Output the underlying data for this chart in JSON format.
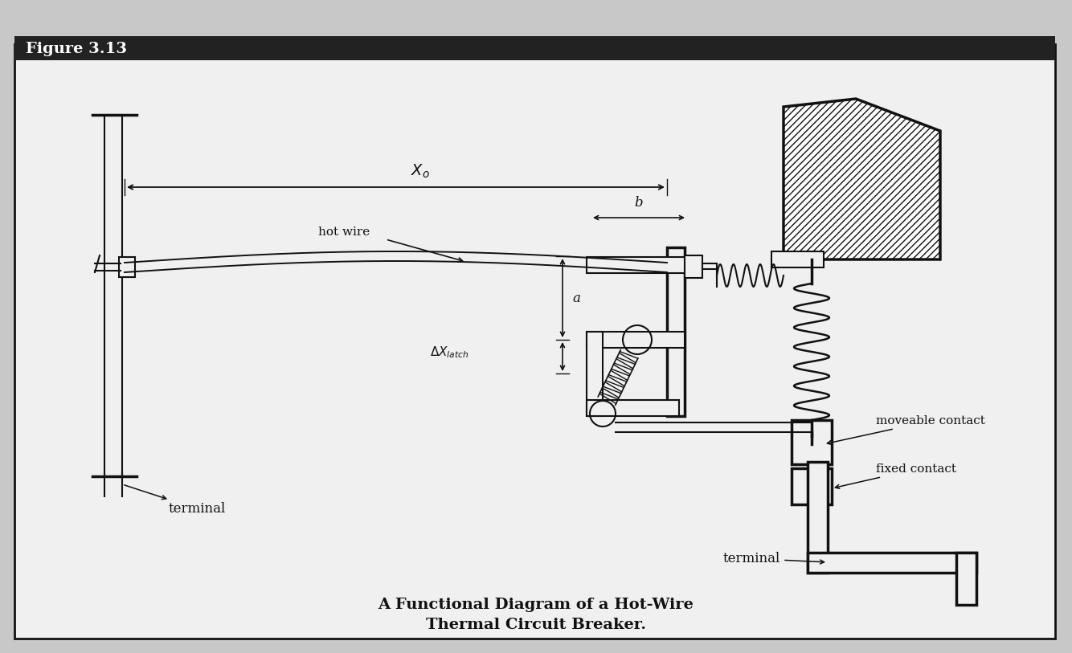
{
  "title": "Figure 3.13",
  "caption_line1": "A Functional Diagram of a Hot-Wire",
  "caption_line2": "Thermal Circuit Breaker.",
  "bg_color": "#c8c8c8",
  "panel_color": "#f0f0f0",
  "line_color": "#111111",
  "labels": {
    "X0": "$X_o$",
    "b": "b",
    "a": "a",
    "hot_wire": "hot wire",
    "moveable_contact": "moveable contact",
    "fixed_contact": "fixed contact",
    "terminal_left": "terminal",
    "terminal_right": "terminal"
  },
  "figsize": [
    13.34,
    8.13
  ],
  "dpi": 100
}
